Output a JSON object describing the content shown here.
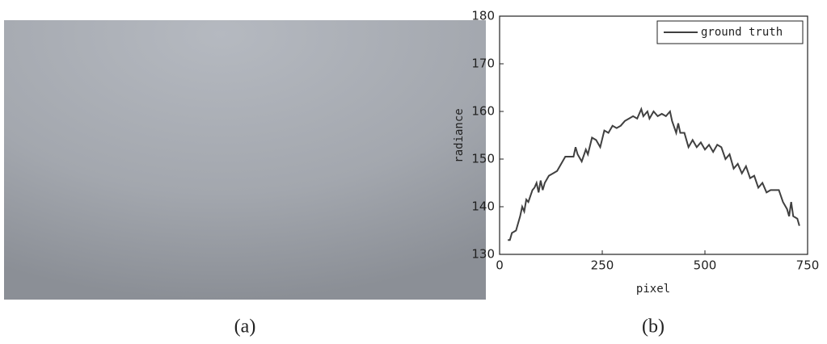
{
  "image_caption": "(a)",
  "chart_data": {
    "type": "line",
    "caption": "(b)",
    "xlabel": "pixel",
    "ylabel": "radiance",
    "x": [
      20,
      25,
      30,
      40,
      50,
      55,
      60,
      65,
      70,
      80,
      85,
      90,
      95,
      100,
      105,
      110,
      120,
      130,
      140,
      150,
      160,
      170,
      180,
      185,
      190,
      200,
      210,
      215,
      225,
      235,
      245,
      255,
      265,
      275,
      285,
      295,
      305,
      315,
      325,
      335,
      345,
      350,
      360,
      365,
      375,
      385,
      395,
      405,
      415,
      420,
      430,
      435,
      440,
      450,
      460,
      470,
      480,
      490,
      500,
      510,
      520,
      530,
      540,
      550,
      560,
      570,
      580,
      590,
      600,
      610,
      620,
      630,
      640,
      650,
      660,
      670,
      680,
      690,
      700,
      705,
      710,
      715,
      725,
      730
    ],
    "series": [
      {
        "name": "ground truth",
        "color": "#404040",
        "values": [
          133,
          133,
          134.5,
          135,
          138,
          140,
          139,
          141.5,
          141,
          143.5,
          144,
          145,
          143,
          145.5,
          143.5,
          145,
          146.5,
          147,
          147.5,
          149,
          150.5,
          150.5,
          150.5,
          152.5,
          151,
          149.5,
          152,
          151,
          154.5,
          154,
          152.5,
          156,
          155.5,
          157,
          156.5,
          157,
          158,
          158.5,
          159,
          158.5,
          160.5,
          159,
          160,
          158.5,
          160,
          159,
          159.5,
          159,
          160,
          158,
          155.5,
          157.5,
          155.5,
          155.5,
          152.5,
          154,
          152.5,
          153.5,
          152,
          153,
          151.5,
          153,
          152.5,
          150,
          151,
          148,
          149,
          147,
          148.5,
          146,
          146.5,
          144,
          145,
          143,
          143.5,
          143.5,
          143.5,
          141,
          139.5,
          138,
          141,
          138,
          137.5,
          136
        ]
      }
    ],
    "xlim": [
      0,
      750
    ],
    "xticks": [
      0,
      250,
      500,
      750
    ],
    "ylim": [
      130,
      180
    ],
    "yticks": [
      130,
      140,
      150,
      160,
      170,
      180
    ],
    "legend": "upper right",
    "grid": false
  }
}
